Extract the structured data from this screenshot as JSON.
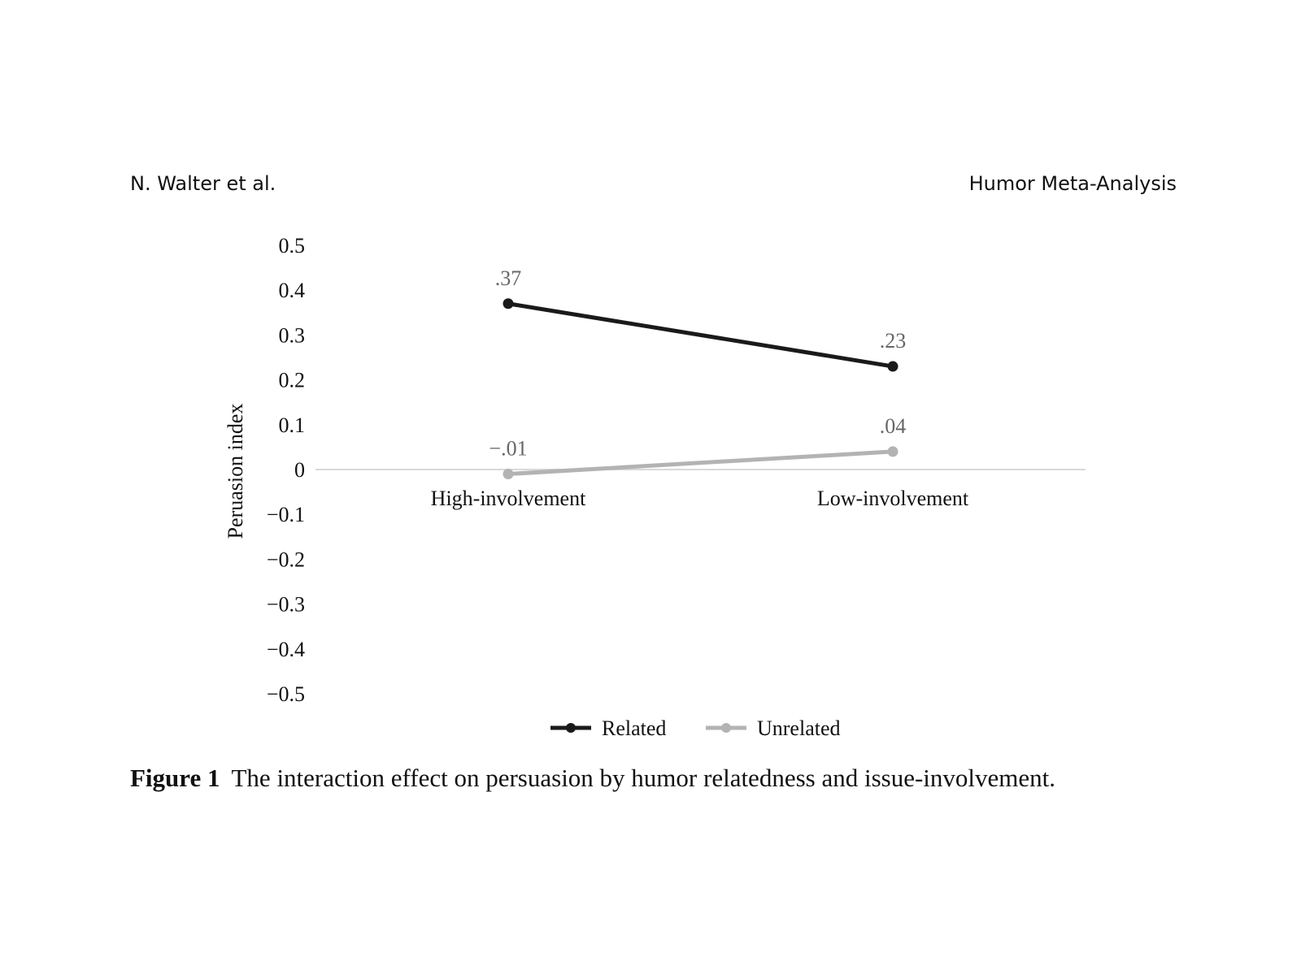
{
  "header": {
    "left": "N. Walter et al.",
    "right": "Humor Meta-Analysis"
  },
  "caption": {
    "label": "Figure 1",
    "text": "The interaction effect on persuasion by humor relatedness and issue-involvement."
  },
  "chart_data": {
    "type": "line",
    "title": "",
    "xlabel": "",
    "ylabel": "Peruasion index",
    "categories": [
      "High-involvement",
      "Low-involvement"
    ],
    "ylim": [
      -0.5,
      0.5
    ],
    "yticks": [
      0.5,
      0.4,
      0.3,
      0.2,
      0.1,
      0,
      -0.1,
      -0.2,
      -0.3,
      -0.4,
      -0.5
    ],
    "ytick_labels": [
      "0.5",
      "0.4",
      "0.3",
      "0.2",
      "0.1",
      "0",
      "−0.1",
      "−0.2",
      "−0.3",
      "−0.4",
      "−0.5"
    ],
    "grid": false,
    "legend_position": "bottom",
    "series": [
      {
        "name": "Related",
        "values": [
          0.37,
          0.23
        ],
        "data_labels": [
          ".37",
          ".23"
        ],
        "color": "#1a1a1a"
      },
      {
        "name": "Unrelated",
        "values": [
          -0.01,
          0.04
        ],
        "data_labels": [
          "−.01",
          ".04"
        ],
        "color": "#b3b3b3"
      }
    ]
  }
}
